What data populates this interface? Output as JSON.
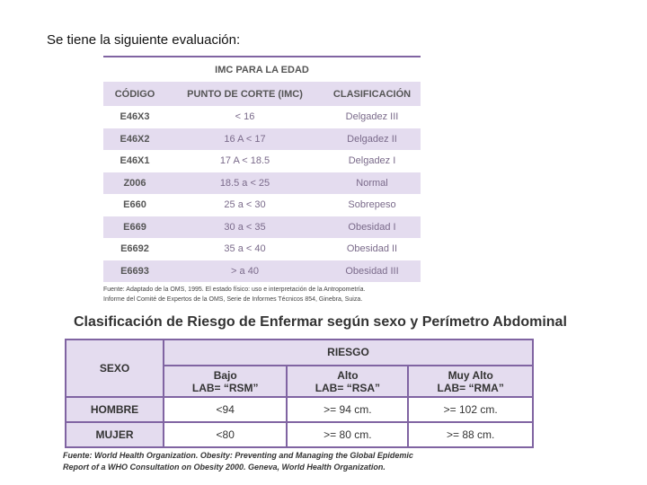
{
  "heading": "Se tiene la siguiente evaluación:",
  "table1": {
    "title": "IMC PARA LA EDAD",
    "header": [
      "CÓDIGO",
      "PUNTO DE CORTE (IMC)",
      "CLASIFICACIÓN"
    ],
    "rows": [
      [
        "E46X3",
        "< 16",
        "Delgadez III"
      ],
      [
        "E46X2",
        "16 A < 17",
        "Delgadez II"
      ],
      [
        "E46X1",
        "17 A < 18.5",
        "Delgadez I"
      ],
      [
        "Z006",
        "18.5 a < 25",
        "Normal"
      ],
      [
        "E660",
        "25 a < 30",
        "Sobrepeso"
      ],
      [
        "E669",
        "30 a < 35",
        "Obesidad I"
      ],
      [
        "E6692",
        "35 a < 40",
        "Obesidad II"
      ],
      [
        "E6693",
        "> a 40",
        "Obesidad III"
      ]
    ],
    "source": [
      "Fuente: Adaptado de la OMS, 1995. El estado físico: uso e interpretación de la Antropometría.",
      "Informe del Comité de Expertos de la OMS, Serie de Informes Técnicos 854, Ginebra, Suiza."
    ]
  },
  "table2": {
    "title": "Clasificación de Riesgo de Enfermar según sexo y Perímetro Abdominal",
    "sex_header": "SEXO",
    "group_header": "RIESGO",
    "header": [
      [
        "Bajo",
        "LAB= “RSM”"
      ],
      [
        "Alto",
        "LAB= “RSA”"
      ],
      [
        "Muy Alto",
        "LAB= “RMA”"
      ]
    ],
    "rows": [
      [
        "HOMBRE",
        "<94",
        ">= 94 cm.",
        ">= 102 cm."
      ],
      [
        "MUJER",
        "<80",
        ">= 80 cm.",
        ">= 88 cm."
      ]
    ],
    "source": [
      "Fuente: World Health Organization. Obesity: Preventing and Managing the Global Epidemic",
      "Report of a WHO Consultation on Obesity 2000. Geneva, World Health Organization."
    ]
  }
}
